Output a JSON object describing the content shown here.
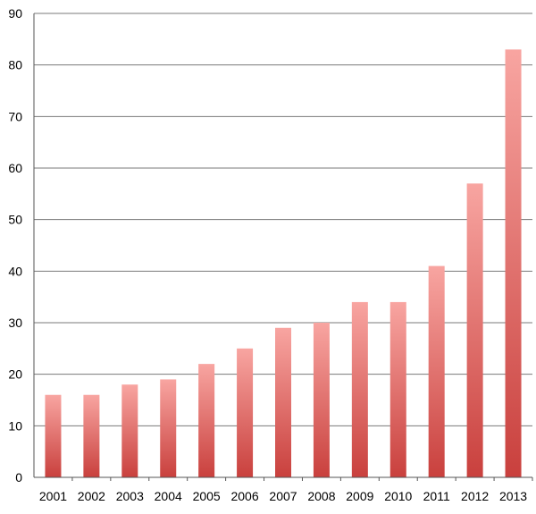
{
  "chart_data": {
    "type": "bar",
    "title": "",
    "xlabel": "",
    "ylabel": "",
    "categories": [
      "2001",
      "2002",
      "2003",
      "2004",
      "2005",
      "2006",
      "2007",
      "2008",
      "2009",
      "2010",
      "2011",
      "2012",
      "2013"
    ],
    "values": [
      16,
      16,
      18,
      19,
      22,
      25,
      29,
      30,
      34,
      34,
      41,
      57,
      83
    ],
    "ylim": [
      0,
      90
    ],
    "yticks": [
      "0",
      "10",
      "20",
      "30",
      "40",
      "50",
      "60",
      "70",
      "80",
      "90"
    ],
    "grid": true,
    "legend": "none",
    "colors": {
      "bar_top": "#f8a5a1",
      "bar_bottom": "#c9403d",
      "grid": "#7a7a7a",
      "axis": "#555555"
    }
  }
}
